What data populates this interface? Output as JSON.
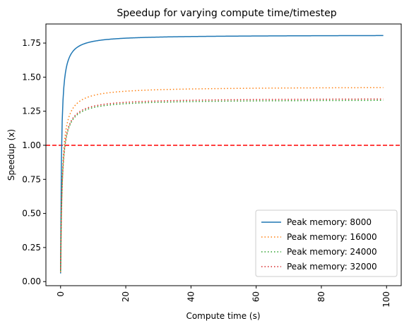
{
  "chart_data": {
    "type": "line",
    "title": "Speedup for varying compute time/timestep",
    "xlabel": "Compute time (s)",
    "ylabel": "Speedup (x)",
    "xlim": [
      -4.5,
      104.5
    ],
    "ylim": [
      -0.03,
      1.89
    ],
    "xticks": [
      0,
      20,
      40,
      60,
      80,
      100
    ],
    "yticks": [
      0.0,
      0.25,
      0.5,
      0.75,
      1.0,
      1.25,
      1.5,
      1.75
    ],
    "ytick_labels": [
      "0.00",
      "0.25",
      "0.50",
      "0.75",
      "1.00",
      "1.25",
      "1.50",
      "1.75"
    ],
    "xtick_labels": [
      "0",
      "20",
      "40",
      "60",
      "80",
      "100"
    ],
    "grid": false,
    "legend_position": "bottom-right",
    "reference_line": {
      "y": 1.0,
      "color": "#ff0000",
      "style": "dashed"
    },
    "series": [
      {
        "name": "Peak memory: 8000",
        "color": "#1f77b4",
        "style": "solid",
        "asymptote": 1.81,
        "k": 0.28,
        "start": 0.06
      },
      {
        "name": "Peak memory: 16000",
        "color": "#ff7f0e",
        "style": "dotted",
        "asymptote": 1.43,
        "k": 0.5,
        "start": 0.07
      },
      {
        "name": "Peak memory: 24000",
        "color": "#2ca02c",
        "style": "dotted",
        "asymptote": 1.336,
        "k": 0.5,
        "start": 0.08
      },
      {
        "name": "Peak memory: 32000",
        "color": "#d62728",
        "style": "dotted",
        "asymptote": 1.346,
        "k": 0.5,
        "start": 0.09
      }
    ]
  }
}
